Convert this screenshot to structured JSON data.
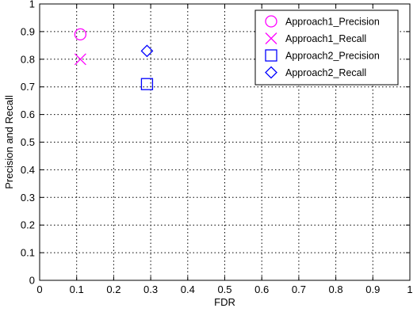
{
  "chart_data": {
    "type": "scatter",
    "xlabel": "FDR",
    "ylabel": "Precision and Recall",
    "xlim": [
      0,
      1
    ],
    "ylim": [
      0,
      1
    ],
    "xticks": [
      "0",
      "0.1",
      "0.2",
      "0.3",
      "0.4",
      "0.5",
      "0.6",
      "0.7",
      "0.8",
      "0.9",
      "1"
    ],
    "yticks": [
      "0",
      "0.1",
      "0.2",
      "0.3",
      "0.4",
      "0.5",
      "0.6",
      "0.7",
      "0.8",
      "0.9",
      "1"
    ],
    "grid": true,
    "legend_position": "top-right",
    "series": [
      {
        "name": "Approach1_Precision",
        "marker": "circle",
        "color": "#ff00ff",
        "points": [
          {
            "x": 0.11,
            "y": 0.89
          }
        ]
      },
      {
        "name": "Approach1_Recall",
        "marker": "x",
        "color": "#ff00ff",
        "points": [
          {
            "x": 0.11,
            "y": 0.8
          }
        ]
      },
      {
        "name": "Approach2_Precision",
        "marker": "square",
        "color": "#0000ff",
        "points": [
          {
            "x": 0.29,
            "y": 0.71
          }
        ]
      },
      {
        "name": "Approach2_Recall",
        "marker": "diamond",
        "color": "#0000ff",
        "points": [
          {
            "x": 0.29,
            "y": 0.83
          }
        ]
      }
    ]
  }
}
